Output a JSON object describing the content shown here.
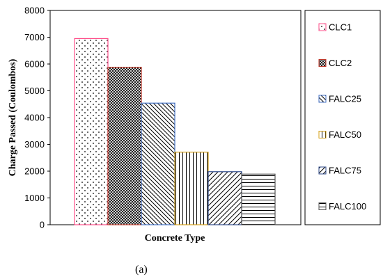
{
  "chart_data": {
    "type": "bar",
    "categories": [
      "CLC1",
      "CLC2",
      "FALC25",
      "FALC50",
      "FALC75",
      "FALC100"
    ],
    "values": [
      6950,
      5880,
      4540,
      2710,
      1980,
      1890
    ],
    "xlabel": "Concrete Type",
    "ylabel": "Charge Passed (Coulombos)",
    "ylim": [
      0,
      8000
    ],
    "yticks": [
      "0",
      "1000",
      "2000",
      "3000",
      "4000",
      "5000",
      "6000",
      "7000",
      "8000"
    ],
    "grid": false,
    "legend_position": "right",
    "series_styles": [
      {
        "pattern": "dots",
        "color": "#ff4d88"
      },
      {
        "pattern": "crosshatch",
        "color": "#c0392b"
      },
      {
        "pattern": "diagonal-left",
        "color": "#4472c4"
      },
      {
        "pattern": "vertical",
        "color": "#d4a017"
      },
      {
        "pattern": "diagonal-right",
        "color": "#2e4a8a"
      },
      {
        "pattern": "horizontal",
        "color": "#555555"
      }
    ]
  },
  "caption": "(a)"
}
